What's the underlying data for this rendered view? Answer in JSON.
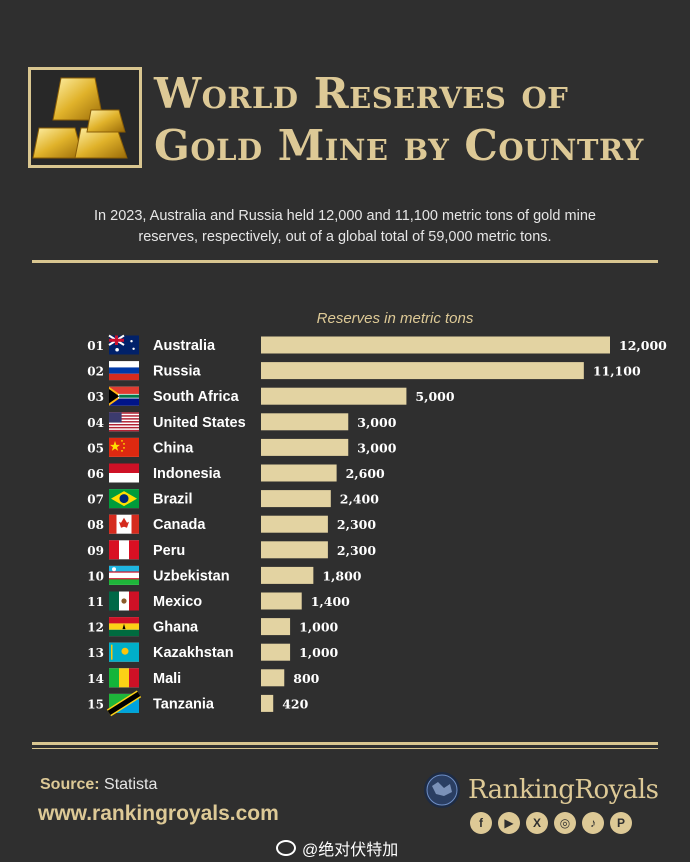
{
  "header": {
    "title_line1": "World Reserves of",
    "title_line2": "Gold Mine by Country"
  },
  "subtitle": {
    "line1": "In 2023, Australia and Russia held 12,000 and 11,100 metric tons of gold mine",
    "line2": "reserves, respectively, out of a global total of 59,000 metric tons."
  },
  "chart_data": {
    "type": "bar",
    "orientation": "horizontal",
    "title": "Reserves in metric tons",
    "xlim": [
      0,
      12000
    ],
    "categories": [
      "Australia",
      "Russia",
      "South Africa",
      "United States",
      "China",
      "Indonesia",
      "Brazil",
      "Canada",
      "Peru",
      "Uzbekistan",
      "Mexico",
      "Ghana",
      "Kazakhstan",
      "Mali",
      "Tanzania"
    ],
    "ranks": [
      "01",
      "02",
      "03",
      "04",
      "05",
      "06",
      "07",
      "08",
      "09",
      "10",
      "11",
      "12",
      "13",
      "14",
      "15"
    ],
    "values": [
      12000,
      11100,
      5000,
      3000,
      3000,
      2600,
      2400,
      2300,
      2300,
      1800,
      1400,
      1000,
      1000,
      800,
      420
    ],
    "value_labels": [
      "12,000",
      "11,100",
      "5,000",
      "3,000",
      "3,000",
      "2,600",
      "2,400",
      "2,300",
      "2,300",
      "1,800",
      "1,400",
      "1,000",
      "1,000",
      "800",
      "420"
    ],
    "flags": [
      "flag-australia",
      "flag-russia",
      "flag-south-africa",
      "flag-united-states",
      "flag-china",
      "flag-indonesia",
      "flag-brazil",
      "flag-canada",
      "flag-peru",
      "flag-uzbekistan",
      "flag-mexico",
      "flag-ghana",
      "flag-kazakhstan",
      "flag-mali",
      "flag-tanzania"
    ],
    "grid": false,
    "bar_color": "#e3d3a2"
  },
  "footer": {
    "source_key": "Source:",
    "source_value": "Statista",
    "url": "www.rankingroyals.com",
    "brand": "RankingRoyals",
    "socials": [
      "facebook-icon",
      "youtube-icon",
      "x-icon",
      "instagram-icon",
      "tiktok-icon",
      "pinterest-icon"
    ],
    "watermark": "@绝对伏特加"
  },
  "colors": {
    "background": "#2f2f2f",
    "gold": "#ddc996",
    "bar": "#e3d3a2"
  }
}
